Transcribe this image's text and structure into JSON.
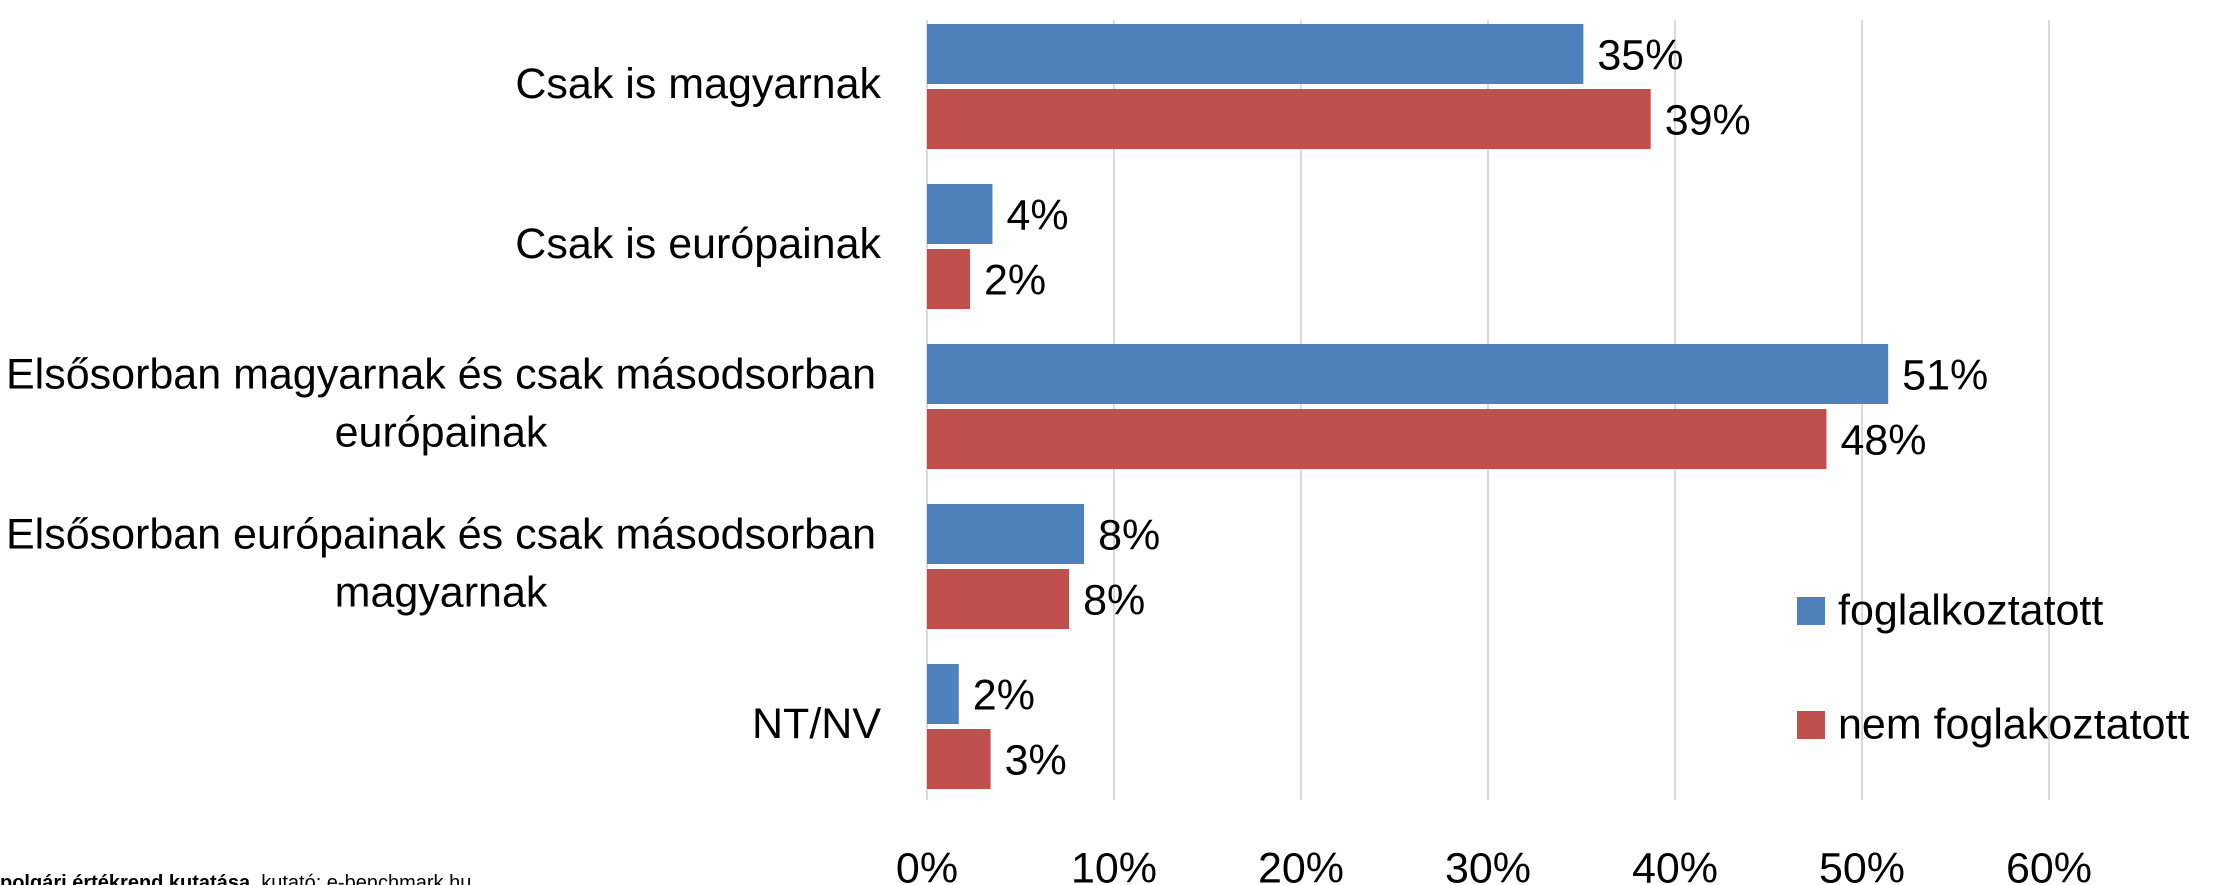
{
  "chart_data": {
    "type": "hbar",
    "categories": [
      "Csak is magyarnak",
      "Csak is európainak",
      "Elsősorban magyarnak és csak másodsorban európainak",
      "Elsősorban európainak és csak másodsorban magyarnak",
      "NT/NV"
    ],
    "series": [
      {
        "name": "foglalkoztatott",
        "color": "#4f81bd",
        "values": [
          35.1,
          3.5,
          51.4,
          8.4,
          1.7
        ],
        "value_labels": [
          "35%",
          "4%",
          "51%",
          "8%",
          "2%"
        ]
      },
      {
        "name": "nem foglakoztatott",
        "color": "#c0504d",
        "values": [
          38.7,
          2.3,
          48.1,
          7.6,
          3.4
        ],
        "value_labels": [
          "39%",
          "2%",
          "48%",
          "8%",
          "3%"
        ]
      }
    ],
    "xlim": [
      0,
      60
    ],
    "xticks": [
      {
        "value": 0,
        "label": "0%"
      },
      {
        "value": 10,
        "label": "10%"
      },
      {
        "value": 20,
        "label": "20%"
      },
      {
        "value": 30,
        "label": "30%"
      },
      {
        "value": 40,
        "label": "40%"
      },
      {
        "value": 50,
        "label": "50%"
      },
      {
        "value": 60,
        "label": "60%"
      }
    ],
    "grid": true,
    "legend": "right",
    "source": {
      "bold": "polgári értékrend kutatása",
      "text": ", kutató: e-benchmark.hu"
    }
  }
}
